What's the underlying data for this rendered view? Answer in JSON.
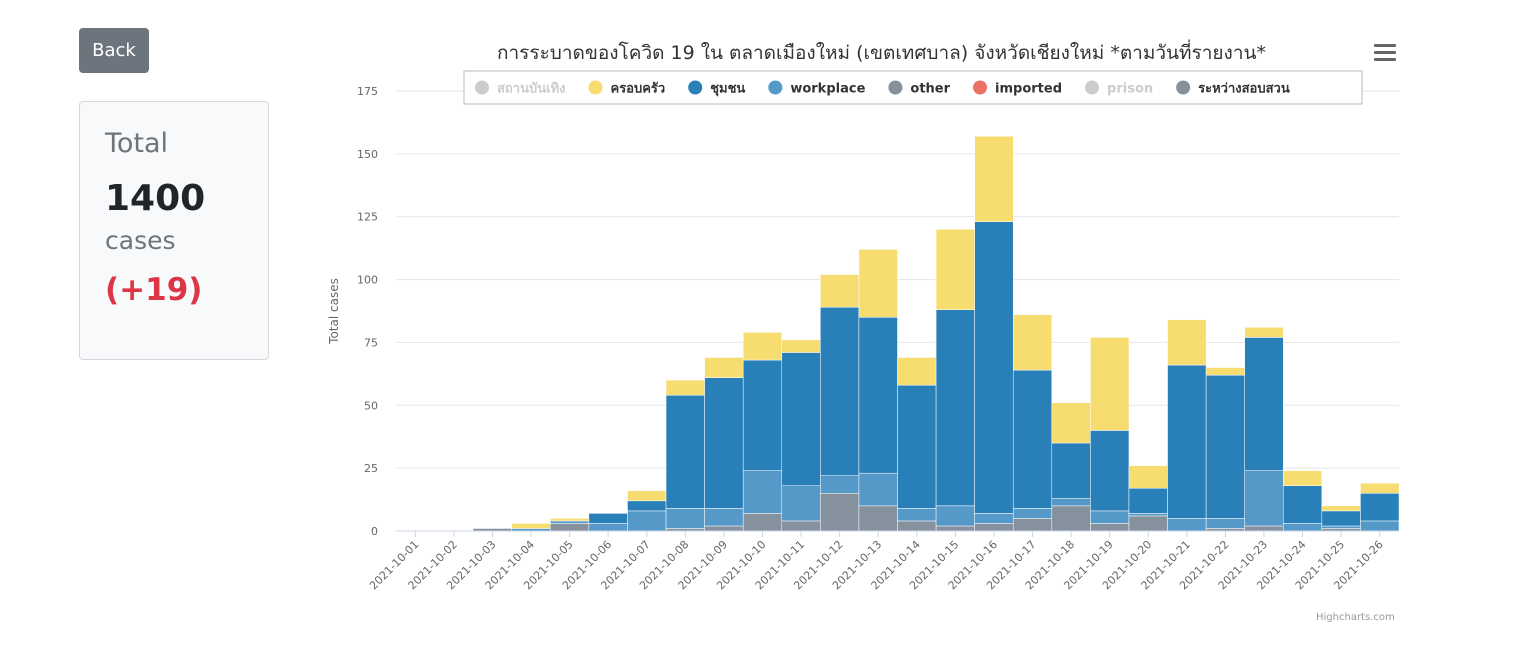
{
  "back_button": {
    "label": "Back"
  },
  "total_card": {
    "title": "Total",
    "value": "1400",
    "unit": "cases",
    "delta": "(+19)"
  },
  "credit": "Highcharts.com",
  "colors": {
    "strip_background": "#ffffff",
    "delta": "#dc3545",
    "button": "#6c757d"
  },
  "chart_data": {
    "type": "bar",
    "stacked": true,
    "title": "การระบาดของโควิด 19 ใน ตลาดเมืองใหม่ (เขตเทศบาล) จังหวัดเชียงใหม่ *ตามวันที่รายงาน*",
    "xlabel": "",
    "ylabel": "Total cases",
    "ylim": [
      0,
      175
    ],
    "yticks": [
      0,
      25,
      50,
      75,
      100,
      125,
      150,
      175
    ],
    "grid": true,
    "legend_position": "top",
    "categories": [
      "2021-10-01",
      "2021-10-02",
      "2021-10-03",
      "2021-10-04",
      "2021-10-05",
      "2021-10-06",
      "2021-10-07",
      "2021-10-08",
      "2021-10-09",
      "2021-10-10",
      "2021-10-11",
      "2021-10-12",
      "2021-10-13",
      "2021-10-14",
      "2021-10-15",
      "2021-10-16",
      "2021-10-17",
      "2021-10-18",
      "2021-10-19",
      "2021-10-20",
      "2021-10-21",
      "2021-10-22",
      "2021-10-23",
      "2021-10-24",
      "2021-10-25",
      "2021-10-26"
    ],
    "series": [
      {
        "name": "สถานบันเทิง",
        "color": "#cccccc",
        "hidden": true,
        "values": [
          0,
          0,
          0,
          0,
          0,
          0,
          0,
          0,
          0,
          0,
          0,
          0,
          0,
          0,
          0,
          0,
          0,
          0,
          0,
          0,
          0,
          0,
          0,
          0,
          0,
          0
        ]
      },
      {
        "name": "ครอบครัว",
        "color": "#f7dc6f",
        "hidden": false,
        "values": [
          0,
          0,
          0,
          2,
          1,
          0,
          4,
          6,
          8,
          11,
          5,
          13,
          27,
          11,
          32,
          34,
          22,
          16,
          37,
          9,
          18,
          3,
          4,
          6,
          2,
          4
        ]
      },
      {
        "name": "ชุมชน",
        "color": "#2980b9",
        "hidden": false,
        "values": [
          0,
          0,
          0,
          0,
          0,
          4,
          4,
          45,
          52,
          44,
          53,
          67,
          62,
          49,
          78,
          116,
          55,
          22,
          32,
          10,
          61,
          57,
          53,
          15,
          6,
          11
        ]
      },
      {
        "name": "workplace",
        "color": "#5499c7",
        "hidden": false,
        "values": [
          0,
          0,
          0,
          1,
          1,
          3,
          8,
          8,
          7,
          17,
          14,
          7,
          13,
          5,
          8,
          4,
          4,
          3,
          5,
          1,
          5,
          4,
          22,
          3,
          1,
          4
        ]
      },
      {
        "name": "other",
        "color": "#85929e",
        "hidden": false,
        "values": [
          0,
          0,
          1,
          0,
          3,
          0,
          0,
          1,
          2,
          7,
          4,
          15,
          10,
          4,
          2,
          3,
          5,
          10,
          3,
          6,
          0,
          1,
          2,
          0,
          1,
          0
        ]
      },
      {
        "name": "imported",
        "color": "#ec7063",
        "hidden": false,
        "values": [
          0,
          0,
          0,
          0,
          0,
          0,
          0,
          0,
          0,
          0,
          0,
          0,
          0,
          0,
          0,
          0,
          0,
          0,
          0,
          0,
          0,
          0,
          0,
          0,
          0,
          0
        ]
      },
      {
        "name": "prison",
        "color": "#cccccc",
        "hidden": true,
        "values": [
          0,
          0,
          0,
          0,
          0,
          0,
          0,
          0,
          0,
          0,
          0,
          0,
          0,
          0,
          0,
          0,
          0,
          0,
          0,
          0,
          0,
          0,
          0,
          0,
          0,
          0
        ]
      },
      {
        "name": "ระหว่างสอบสวน",
        "color": "#85929e",
        "hidden": false,
        "values": [
          0,
          0,
          0,
          0,
          0,
          0,
          0,
          0,
          0,
          0,
          0,
          0,
          0,
          0,
          0,
          0,
          0,
          0,
          0,
          0,
          0,
          0,
          0,
          0,
          0,
          0
        ]
      }
    ]
  }
}
